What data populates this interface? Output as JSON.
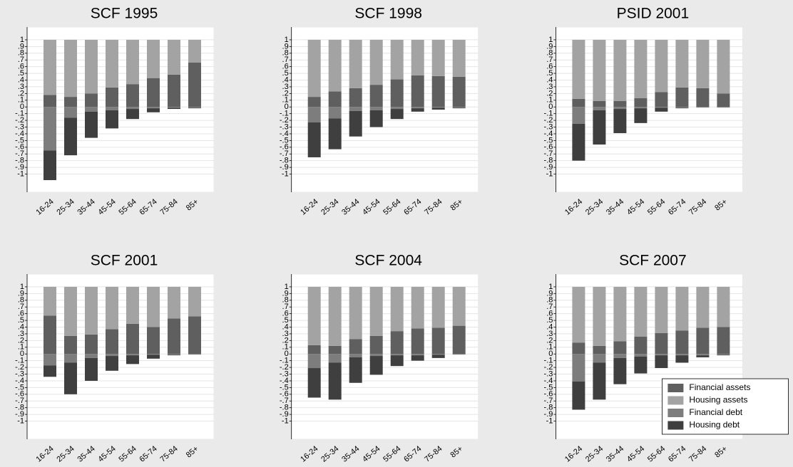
{
  "chart_data": [
    {
      "type": "bar",
      "title": "SCF 1995",
      "categories": [
        "16-24",
        "25-34",
        "35-44",
        "45-54",
        "55-64",
        "65-74",
        "75-84",
        "85+"
      ],
      "series": [
        {
          "color": "#5f5f5f",
          "values": [
            0.18,
            0.15,
            0.2,
            0.29,
            0.34,
            0.43,
            0.48,
            0.66
          ]
        },
        {
          "color": "#a3a3a3",
          "values": [
            0.82,
            0.85,
            0.8,
            0.71,
            0.66,
            0.57,
            0.52,
            0.34
          ]
        },
        {
          "color": "#7d7d7d",
          "values": [
            -0.65,
            -0.16,
            -0.07,
            -0.05,
            -0.03,
            -0.02,
            -0.01,
            -0.01
          ]
        },
        {
          "color": "#3f3f3f",
          "values": [
            -0.44,
            -0.56,
            -0.39,
            -0.27,
            -0.15,
            -0.06,
            -0.02,
            -0.01
          ]
        }
      ],
      "ylim": [
        -1.27,
        1.19
      ],
      "yticks": [
        1,
        {
          "value": 0.9,
          "label": ".9"
        },
        {
          "value": 0.8,
          "label": ".8"
        },
        {
          "value": 0.7,
          "label": ".7"
        },
        {
          "value": 0.6,
          "label": ".6"
        },
        {
          "value": 0.5,
          "label": ".5"
        },
        {
          "value": 0.4,
          "label": ".4"
        },
        {
          "value": 0.3,
          "label": ".3"
        },
        {
          "value": 0.2,
          "label": ".2"
        },
        {
          "value": 0.1,
          "label": ".1"
        },
        0,
        {
          "value": -0.1,
          "label": "-.1"
        },
        {
          "value": -0.2,
          "label": "-.2"
        },
        {
          "value": -0.3,
          "label": "-.3"
        },
        {
          "value": -0.4,
          "label": "-.4"
        },
        {
          "value": -0.5,
          "label": "-.5"
        },
        {
          "value": -0.6,
          "label": "-.6"
        },
        {
          "value": -0.7,
          "label": "-.7"
        },
        {
          "value": -0.8,
          "label": "-.8"
        },
        {
          "value": -0.9,
          "label": "-.9"
        },
        -1
      ],
      "grid": true
    },
    {
      "type": "bar",
      "title": "SCF 1998",
      "categories": [
        "16-24",
        "25-34",
        "35-44",
        "45-54",
        "55-64",
        "65-74",
        "75-84",
        "85+"
      ],
      "series": [
        {
          "color": "#5f5f5f",
          "values": [
            0.15,
            0.23,
            0.28,
            0.33,
            0.41,
            0.47,
            0.46,
            0.45
          ]
        },
        {
          "color": "#a3a3a3",
          "values": [
            0.85,
            0.77,
            0.72,
            0.67,
            0.59,
            0.53,
            0.54,
            0.55
          ]
        },
        {
          "color": "#7d7d7d",
          "values": [
            -0.23,
            -0.17,
            -0.06,
            -0.05,
            -0.03,
            -0.02,
            -0.01,
            -0.01
          ]
        },
        {
          "color": "#3f3f3f",
          "values": [
            -0.52,
            -0.46,
            -0.38,
            -0.25,
            -0.15,
            -0.05,
            -0.03,
            -0.01
          ]
        }
      ],
      "ylim": [
        -1.27,
        1.19
      ],
      "yticks": [
        1,
        {
          "value": 0.9,
          "label": ".9"
        },
        {
          "value": 0.8,
          "label": ".8"
        },
        {
          "value": 0.7,
          "label": ".7"
        },
        {
          "value": 0.6,
          "label": ".6"
        },
        {
          "value": 0.5,
          "label": ".5"
        },
        {
          "value": 0.4,
          "label": ".4"
        },
        {
          "value": 0.3,
          "label": ".3"
        },
        {
          "value": 0.2,
          "label": ".2"
        },
        {
          "value": 0.1,
          "label": ".1"
        },
        0,
        {
          "value": -0.1,
          "label": "-.1"
        },
        {
          "value": -0.2,
          "label": "-.2"
        },
        {
          "value": -0.3,
          "label": "-.3"
        },
        {
          "value": -0.4,
          "label": "-.4"
        },
        {
          "value": -0.5,
          "label": "-.5"
        },
        {
          "value": -0.6,
          "label": "-.6"
        },
        {
          "value": -0.7,
          "label": "-.7"
        },
        {
          "value": -0.8,
          "label": "-.8"
        },
        {
          "value": -0.9,
          "label": "-.9"
        },
        -1
      ],
      "grid": true
    },
    {
      "type": "bar",
      "title": "PSID 2001",
      "categories": [
        "16-24",
        "25-34",
        "35-44",
        "45-54",
        "55-64",
        "65-74",
        "75-84",
        "85+"
      ],
      "series": [
        {
          "color": "#5f5f5f",
          "values": [
            0.12,
            0.09,
            0.09,
            0.13,
            0.22,
            0.29,
            0.28,
            0.2
          ]
        },
        {
          "color": "#a3a3a3",
          "values": [
            0.88,
            0.91,
            0.91,
            0.87,
            0.78,
            0.71,
            0.72,
            0.8
          ]
        },
        {
          "color": "#7d7d7d",
          "values": [
            -0.25,
            -0.05,
            -0.03,
            -0.02,
            -0.01,
            -0.01,
            -0.01,
            -0.01
          ]
        },
        {
          "color": "#3f3f3f",
          "values": [
            -0.55,
            -0.51,
            -0.36,
            -0.22,
            -0.06,
            -0.01,
            0,
            0
          ]
        }
      ],
      "ylim": [
        -1.27,
        1.19
      ],
      "yticks": [
        1,
        {
          "value": 0.9,
          "label": ".9"
        },
        {
          "value": 0.8,
          "label": ".8"
        },
        {
          "value": 0.7,
          "label": ".7"
        },
        {
          "value": 0.6,
          "label": ".6"
        },
        {
          "value": 0.5,
          "label": ".5"
        },
        {
          "value": 0.4,
          "label": ".4"
        },
        {
          "value": 0.3,
          "label": ".3"
        },
        {
          "value": 0.2,
          "label": ".2"
        },
        {
          "value": 0.1,
          "label": ".1"
        },
        0,
        {
          "value": -0.1,
          "label": "-.1"
        },
        {
          "value": -0.2,
          "label": "-.2"
        },
        {
          "value": -0.3,
          "label": "-.3"
        },
        {
          "value": -0.4,
          "label": "-.4"
        },
        {
          "value": -0.5,
          "label": "-.5"
        },
        {
          "value": -0.6,
          "label": "-.6"
        },
        {
          "value": -0.7,
          "label": "-.7"
        },
        {
          "value": -0.8,
          "label": "-.8"
        },
        {
          "value": -0.9,
          "label": "-.9"
        },
        -1
      ],
      "grid": true
    },
    {
      "type": "bar",
      "title": "SCF 2001",
      "categories": [
        "16-24",
        "25-34",
        "35-44",
        "45-54",
        "55-64",
        "65-74",
        "75-84",
        "85+"
      ],
      "series": [
        {
          "color": "#5f5f5f",
          "values": [
            0.57,
            0.27,
            0.29,
            0.37,
            0.45,
            0.4,
            0.53,
            0.56
          ]
        },
        {
          "color": "#a3a3a3",
          "values": [
            0.43,
            0.73,
            0.71,
            0.63,
            0.55,
            0.6,
            0.47,
            0.44
          ]
        },
        {
          "color": "#7d7d7d",
          "values": [
            -0.17,
            -0.13,
            -0.06,
            -0.03,
            -0.02,
            -0.01,
            -0.01,
            -0.01
          ]
        },
        {
          "color": "#3f3f3f",
          "values": [
            -0.17,
            -0.47,
            -0.34,
            -0.22,
            -0.13,
            -0.06,
            -0.01,
            0
          ]
        }
      ],
      "ylim": [
        -1.27,
        1.19
      ],
      "yticks": [
        1,
        {
          "value": 0.9,
          "label": ".9"
        },
        {
          "value": 0.8,
          "label": ".8"
        },
        {
          "value": 0.7,
          "label": ".7"
        },
        {
          "value": 0.6,
          "label": ".6"
        },
        {
          "value": 0.5,
          "label": ".5"
        },
        {
          "value": 0.4,
          "label": ".4"
        },
        {
          "value": 0.3,
          "label": ".3"
        },
        {
          "value": 0.2,
          "label": ".2"
        },
        {
          "value": 0.1,
          "label": ".1"
        },
        0,
        {
          "value": -0.1,
          "label": "-.1"
        },
        {
          "value": -0.2,
          "label": "-.2"
        },
        {
          "value": -0.3,
          "label": "-.3"
        },
        {
          "value": -0.4,
          "label": "-.4"
        },
        {
          "value": -0.5,
          "label": "-.5"
        },
        {
          "value": -0.6,
          "label": "-.6"
        },
        {
          "value": -0.7,
          "label": "-.7"
        },
        {
          "value": -0.8,
          "label": "-.8"
        },
        {
          "value": -0.9,
          "label": "-.9"
        },
        -1
      ],
      "grid": true
    },
    {
      "type": "bar",
      "title": "SCF 2004",
      "categories": [
        "16-24",
        "25-34",
        "35-44",
        "45-54",
        "55-64",
        "65-74",
        "75-84",
        "85+"
      ],
      "series": [
        {
          "color": "#5f5f5f",
          "values": [
            0.13,
            0.12,
            0.22,
            0.27,
            0.34,
            0.38,
            0.39,
            0.42
          ]
        },
        {
          "color": "#a3a3a3",
          "values": [
            0.87,
            0.88,
            0.78,
            0.73,
            0.66,
            0.62,
            0.61,
            0.58
          ]
        },
        {
          "color": "#7d7d7d",
          "values": [
            -0.21,
            -0.13,
            -0.05,
            -0.03,
            -0.02,
            -0.02,
            -0.01,
            -0.01
          ]
        },
        {
          "color": "#3f3f3f",
          "values": [
            -0.44,
            -0.55,
            -0.38,
            -0.28,
            -0.16,
            -0.08,
            -0.05,
            0
          ]
        }
      ],
      "ylim": [
        -1.27,
        1.19
      ],
      "yticks": [
        1,
        {
          "value": 0.9,
          "label": ".9"
        },
        {
          "value": 0.8,
          "label": ".8"
        },
        {
          "value": 0.7,
          "label": ".7"
        },
        {
          "value": 0.6,
          "label": ".6"
        },
        {
          "value": 0.5,
          "label": ".5"
        },
        {
          "value": 0.4,
          "label": ".4"
        },
        {
          "value": 0.3,
          "label": ".3"
        },
        {
          "value": 0.2,
          "label": ".2"
        },
        {
          "value": 0.1,
          "label": ".1"
        },
        0,
        {
          "value": -0.1,
          "label": "-.1"
        },
        {
          "value": -0.2,
          "label": "-.2"
        },
        {
          "value": -0.3,
          "label": "-.3"
        },
        {
          "value": -0.4,
          "label": "-.4"
        },
        {
          "value": -0.5,
          "label": "-.5"
        },
        {
          "value": -0.6,
          "label": "-.6"
        },
        {
          "value": -0.7,
          "label": "-.7"
        },
        {
          "value": -0.8,
          "label": "-.8"
        },
        {
          "value": -0.9,
          "label": "-.9"
        },
        -1
      ],
      "grid": true
    },
    {
      "type": "bar",
      "title": "SCF 2007",
      "categories": [
        "16-24",
        "25-34",
        "35-44",
        "45-54",
        "55-64",
        "65-74",
        "75-84",
        "85+"
      ],
      "series": [
        {
          "name": "Financial assets",
          "color": "#5f5f5f",
          "values": [
            0.17,
            0.12,
            0.19,
            0.26,
            0.31,
            0.35,
            0.39,
            0.4
          ]
        },
        {
          "name": "Housing assets",
          "color": "#a3a3a3",
          "values": [
            0.83,
            0.88,
            0.81,
            0.74,
            0.69,
            0.65,
            0.61,
            0.6
          ]
        },
        {
          "name": "Financial debt",
          "color": "#7d7d7d",
          "values": [
            -0.41,
            -0.13,
            -0.06,
            -0.04,
            -0.02,
            -0.02,
            -0.02,
            -0.01
          ]
        },
        {
          "name": "Housing debt",
          "color": "#3f3f3f",
          "values": [
            -0.42,
            -0.55,
            -0.39,
            -0.25,
            -0.19,
            -0.11,
            -0.03,
            -0.01
          ]
        }
      ],
      "ylim": [
        -1.27,
        1.19
      ],
      "yticks": [
        1,
        {
          "value": 0.9,
          "label": ".9"
        },
        {
          "value": 0.8,
          "label": ".8"
        },
        {
          "value": 0.7,
          "label": ".7"
        },
        {
          "value": 0.6,
          "label": ".6"
        },
        {
          "value": 0.5,
          "label": ".5"
        },
        {
          "value": 0.4,
          "label": ".4"
        },
        {
          "value": 0.3,
          "label": ".3"
        },
        {
          "value": 0.2,
          "label": ".2"
        },
        {
          "value": 0.1,
          "label": ".1"
        },
        0,
        {
          "value": -0.1,
          "label": "-.1"
        },
        {
          "value": -0.2,
          "label": "-.2"
        },
        {
          "value": -0.3,
          "label": "-.3"
        },
        {
          "value": -0.4,
          "label": "-.4"
        },
        {
          "value": -0.5,
          "label": "-.5"
        },
        {
          "value": -0.6,
          "label": "-.6"
        },
        {
          "value": -0.7,
          "label": "-.7"
        },
        {
          "value": -0.8,
          "label": "-.8"
        },
        {
          "value": -0.9,
          "label": "-.9"
        },
        -1
      ],
      "grid": true,
      "legend": "lower right"
    }
  ]
}
